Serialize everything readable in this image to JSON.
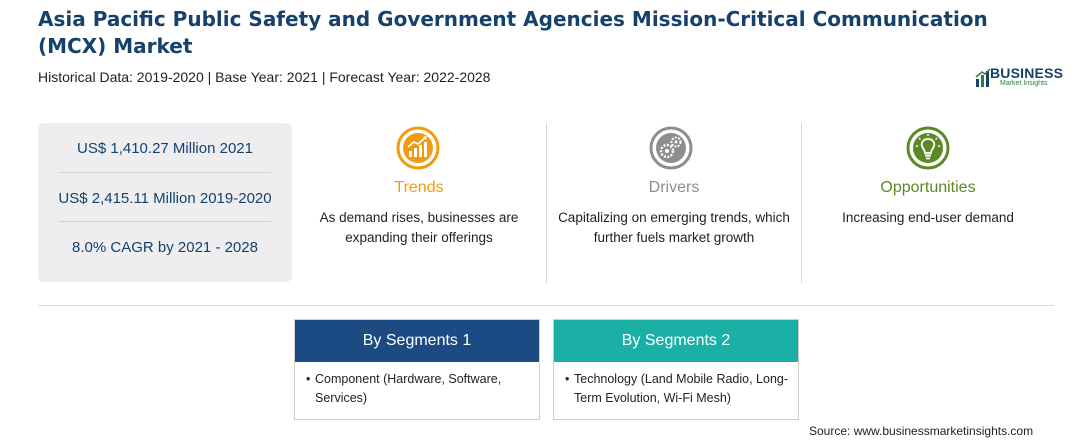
{
  "header": {
    "title": "Asia Pacific Public Safety and Government Agencies Mission-Critical Communication (MCX) Market",
    "subtitle": "Historical Data: 2019-2020 | Base Year: 2021 | Forecast Year: 2022-2028"
  },
  "logo": {
    "word": "BUSINESS",
    "sub": "Market Insights"
  },
  "stats": [
    "US$ 1,410.27 Million 2021",
    "US$ 2,415.11 Million 2019-2020",
    "8.0% CAGR by 2021 - 2028"
  ],
  "factors": [
    {
      "title": "Trends",
      "text": "As demand rises, businesses are expanding their offerings",
      "color": "#f29b0e",
      "icon": "trend-chart-icon"
    },
    {
      "title": "Drivers",
      "text": "Capitalizing on emerging trends, which further fuels market growth",
      "color": "#8e8e8e",
      "icon": "gears-icon"
    },
    {
      "title": "Opportunities",
      "text": "Increasing end-user demand",
      "color": "#5b8a24",
      "icon": "lightbulb-icon"
    }
  ],
  "segments": [
    {
      "title": "By Segments 1",
      "item": "Component (Hardware, Software, Services)",
      "color": "#1b4b82"
    },
    {
      "title": "By Segments 2",
      "item": "Technology (Land Mobile Radio, Long-Term Evolution, Wi-Fi Mesh)",
      "color": "#1ab0a6"
    }
  ],
  "source": "Source: www.businessmarketinsights.com",
  "colors": {
    "title": "#15416b",
    "stat_text": "#15416b",
    "stats_bg": "#eeeef1"
  }
}
